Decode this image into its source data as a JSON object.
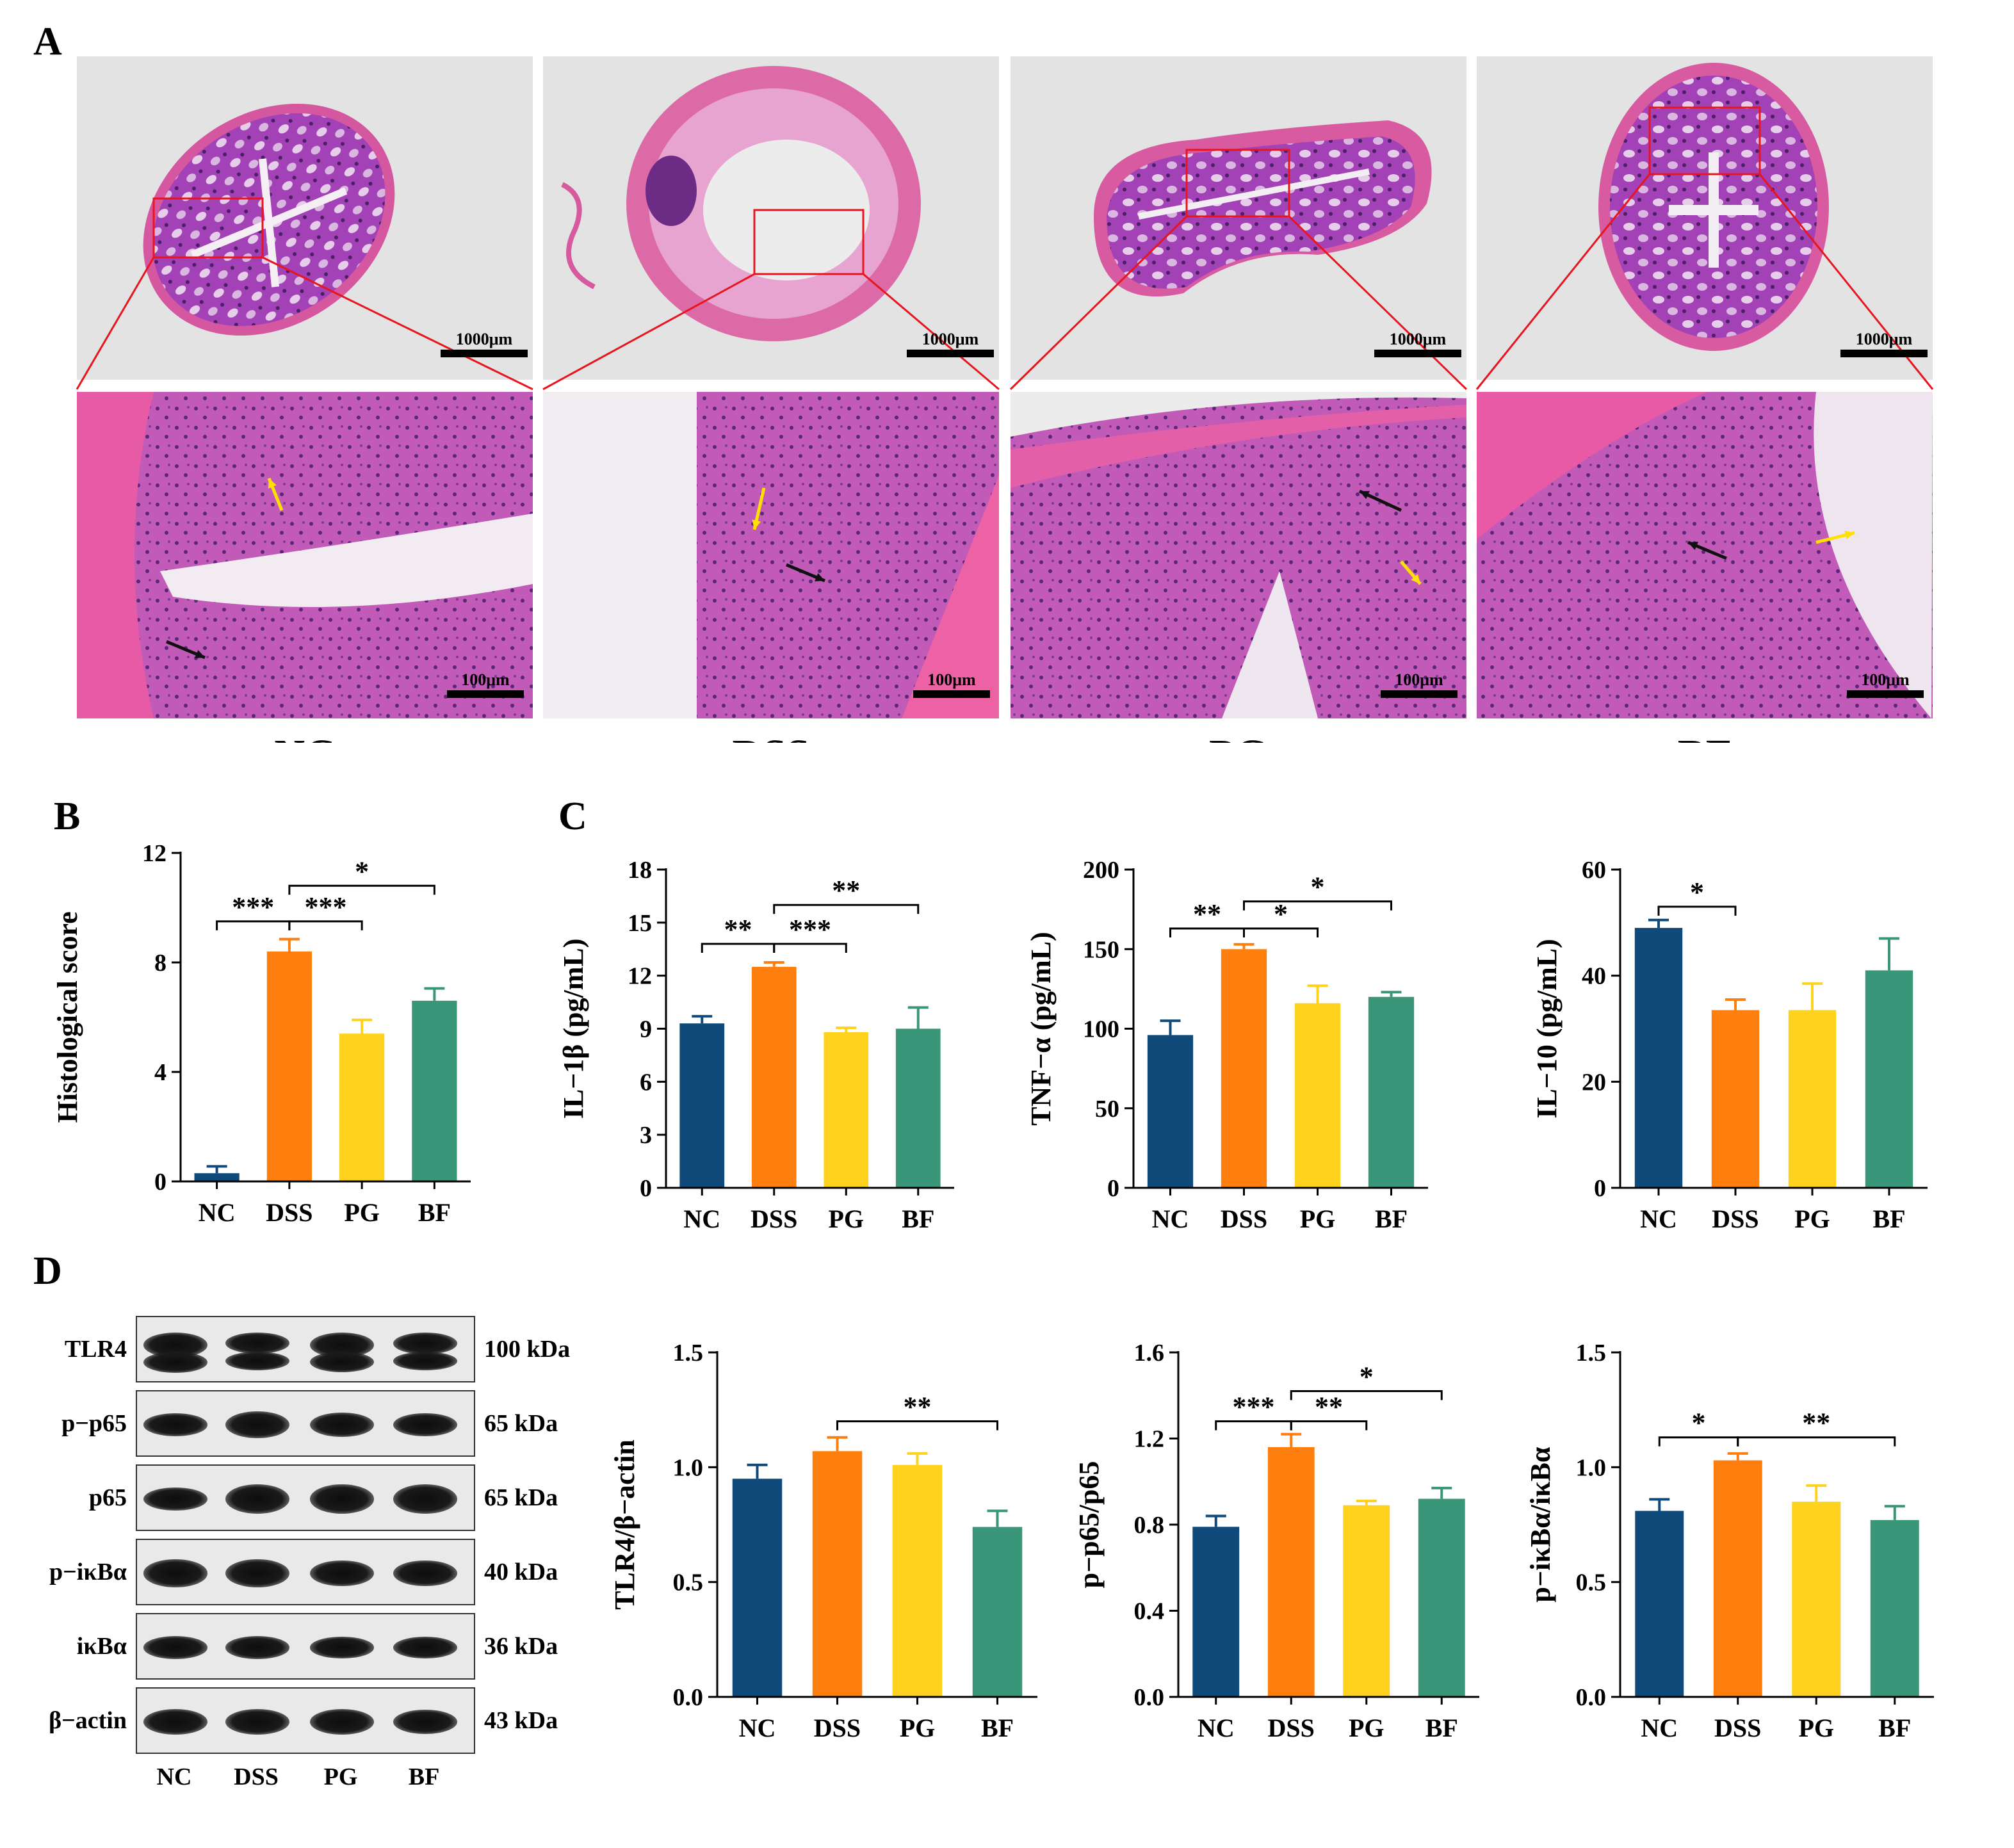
{
  "panels": {
    "A": "A",
    "B": "B",
    "C": "C",
    "D": "D"
  },
  "histology": {
    "groups": [
      "NC",
      "DSS",
      "PG",
      "BF"
    ],
    "scale_low": "1000μm",
    "scale_high": "100μm"
  },
  "colors": {
    "NC": "#0f4a7a",
    "DSS": "#ff7f0e",
    "PG": "#ffd21f",
    "BF": "#3a9678",
    "zoom_box": "#e8141e",
    "arrow_yellow": "#ffe100",
    "arrow_black": "#111111"
  },
  "western_blot": {
    "bands": [
      {
        "name": "TLR4",
        "kda": "100 kDa"
      },
      {
        "name": "p−p65",
        "kda": "65 kDa"
      },
      {
        "name": "p65",
        "kda": "65 kDa"
      },
      {
        "name": "p−iκBα",
        "kda": "40 kDa"
      },
      {
        "name": "iκBα",
        "kda": "36 kDa"
      },
      {
        "name": "β−actin",
        "kda": "43 kDa"
      }
    ],
    "lanes": [
      "NC",
      "DSS",
      "PG",
      "BF"
    ]
  },
  "chart_data": [
    {
      "id": "histo",
      "type": "bar",
      "categories": [
        "NC",
        "DSS",
        "PG",
        "BF"
      ],
      "values": [
        0.3,
        8.4,
        5.4,
        6.6
      ],
      "errors": [
        0.25,
        0.45,
        0.5,
        0.45
      ],
      "ylabel": "Histological  score",
      "ylim": [
        0,
        12
      ],
      "yticks": [
        "0",
        "4",
        "8",
        "12"
      ],
      "tickvals": [
        0,
        4,
        8,
        12
      ],
      "sig": [
        {
          "a": 0,
          "b": 1,
          "label": "***",
          "y": 9.5
        },
        {
          "a": 1,
          "b": 2,
          "label": "***",
          "y": 9.5
        },
        {
          "a": 1,
          "b": 3,
          "label": "*",
          "y": 10.8
        }
      ]
    },
    {
      "id": "il1b",
      "type": "bar",
      "categories": [
        "NC",
        "DSS",
        "PG",
        "BF"
      ],
      "values": [
        9.3,
        12.5,
        8.8,
        9.0
      ],
      "errors": [
        0.4,
        0.25,
        0.25,
        1.2
      ],
      "ylabel": "IL−1β (pg/mL)",
      "ylim": [
        0,
        18
      ],
      "yticks": [
        "0",
        "3",
        "6",
        "9",
        "12",
        "15",
        "18"
      ],
      "tickvals": [
        0,
        3,
        6,
        9,
        12,
        15,
        18
      ],
      "sig": [
        {
          "a": 0,
          "b": 1,
          "label": "**",
          "y": 13.8
        },
        {
          "a": 1,
          "b": 2,
          "label": "***",
          "y": 13.8
        },
        {
          "a": 1,
          "b": 3,
          "label": "**",
          "y": 16.0
        }
      ]
    },
    {
      "id": "tnfa",
      "type": "bar",
      "categories": [
        "NC",
        "DSS",
        "PG",
        "BF"
      ],
      "values": [
        96,
        150,
        116,
        120
      ],
      "errors": [
        9,
        3,
        11,
        3
      ],
      "ylabel": "TNF−α (pg/mL)",
      "ylim": [
        0,
        200
      ],
      "yticks": [
        "0",
        "50",
        "100",
        "150",
        "200"
      ],
      "tickvals": [
        0,
        50,
        100,
        150,
        200
      ],
      "sig": [
        {
          "a": 0,
          "b": 1,
          "label": "**",
          "y": 163
        },
        {
          "a": 1,
          "b": 2,
          "label": "*",
          "y": 163
        },
        {
          "a": 1,
          "b": 3,
          "label": "*",
          "y": 180
        }
      ]
    },
    {
      "id": "il10",
      "type": "bar",
      "categories": [
        "NC",
        "DSS",
        "PG",
        "BF"
      ],
      "values": [
        49,
        33.5,
        33.5,
        41
      ],
      "errors": [
        1.5,
        2,
        5,
        6
      ],
      "ylabel": "IL−10 (pg/mL)",
      "ylim": [
        0,
        60
      ],
      "yticks": [
        "0",
        "20",
        "40",
        "60"
      ],
      "tickvals": [
        0,
        20,
        40,
        60
      ],
      "sig": [
        {
          "a": 0,
          "b": 1,
          "label": "*",
          "y": 53
        }
      ]
    },
    {
      "id": "tlr4",
      "type": "bar",
      "categories": [
        "NC",
        "DSS",
        "PG",
        "BF"
      ],
      "values": [
        0.95,
        1.07,
        1.01,
        0.74
      ],
      "errors": [
        0.06,
        0.06,
        0.05,
        0.07
      ],
      "ylabel": "TLR4/β−actin",
      "ylim": [
        0,
        1.5
      ],
      "yticks": [
        "0.0",
        "0.5",
        "1.0",
        "1.5"
      ],
      "tickvals": [
        0,
        0.5,
        1.0,
        1.5
      ],
      "sig": [
        {
          "a": 1,
          "b": 3,
          "label": "**",
          "y": 1.2
        }
      ]
    },
    {
      "id": "pp65",
      "type": "bar",
      "categories": [
        "NC",
        "DSS",
        "PG",
        "BF"
      ],
      "values": [
        0.79,
        1.16,
        0.89,
        0.92
      ],
      "errors": [
        0.05,
        0.06,
        0.02,
        0.05
      ],
      "ylabel": "p−p65/p65",
      "ylim": [
        0,
        1.6
      ],
      "yticks": [
        "0.0",
        "0.4",
        "0.8",
        "1.2",
        "1.6"
      ],
      "tickvals": [
        0,
        0.4,
        0.8,
        1.2,
        1.6
      ],
      "sig": [
        {
          "a": 0,
          "b": 1,
          "label": "***",
          "y": 1.28
        },
        {
          "a": 1,
          "b": 2,
          "label": "**",
          "y": 1.28
        },
        {
          "a": 1,
          "b": 3,
          "label": "*",
          "y": 1.42
        }
      ]
    },
    {
      "id": "pikba",
      "type": "bar",
      "categories": [
        "NC",
        "DSS",
        "PG",
        "BF"
      ],
      "values": [
        0.81,
        1.03,
        0.85,
        0.77
      ],
      "errors": [
        0.05,
        0.03,
        0.07,
        0.06
      ],
      "ylabel": "p−iκBα/iκBα",
      "ylim": [
        0,
        1.5
      ],
      "yticks": [
        "0.0",
        "0.5",
        "1.0",
        "1.5"
      ],
      "tickvals": [
        0,
        0.5,
        1.0,
        1.5
      ],
      "sig": [
        {
          "a": 0,
          "b": 1,
          "label": "*",
          "y": 1.13
        },
        {
          "a": 1,
          "b": 3,
          "label": "**",
          "y": 1.13
        }
      ]
    }
  ]
}
